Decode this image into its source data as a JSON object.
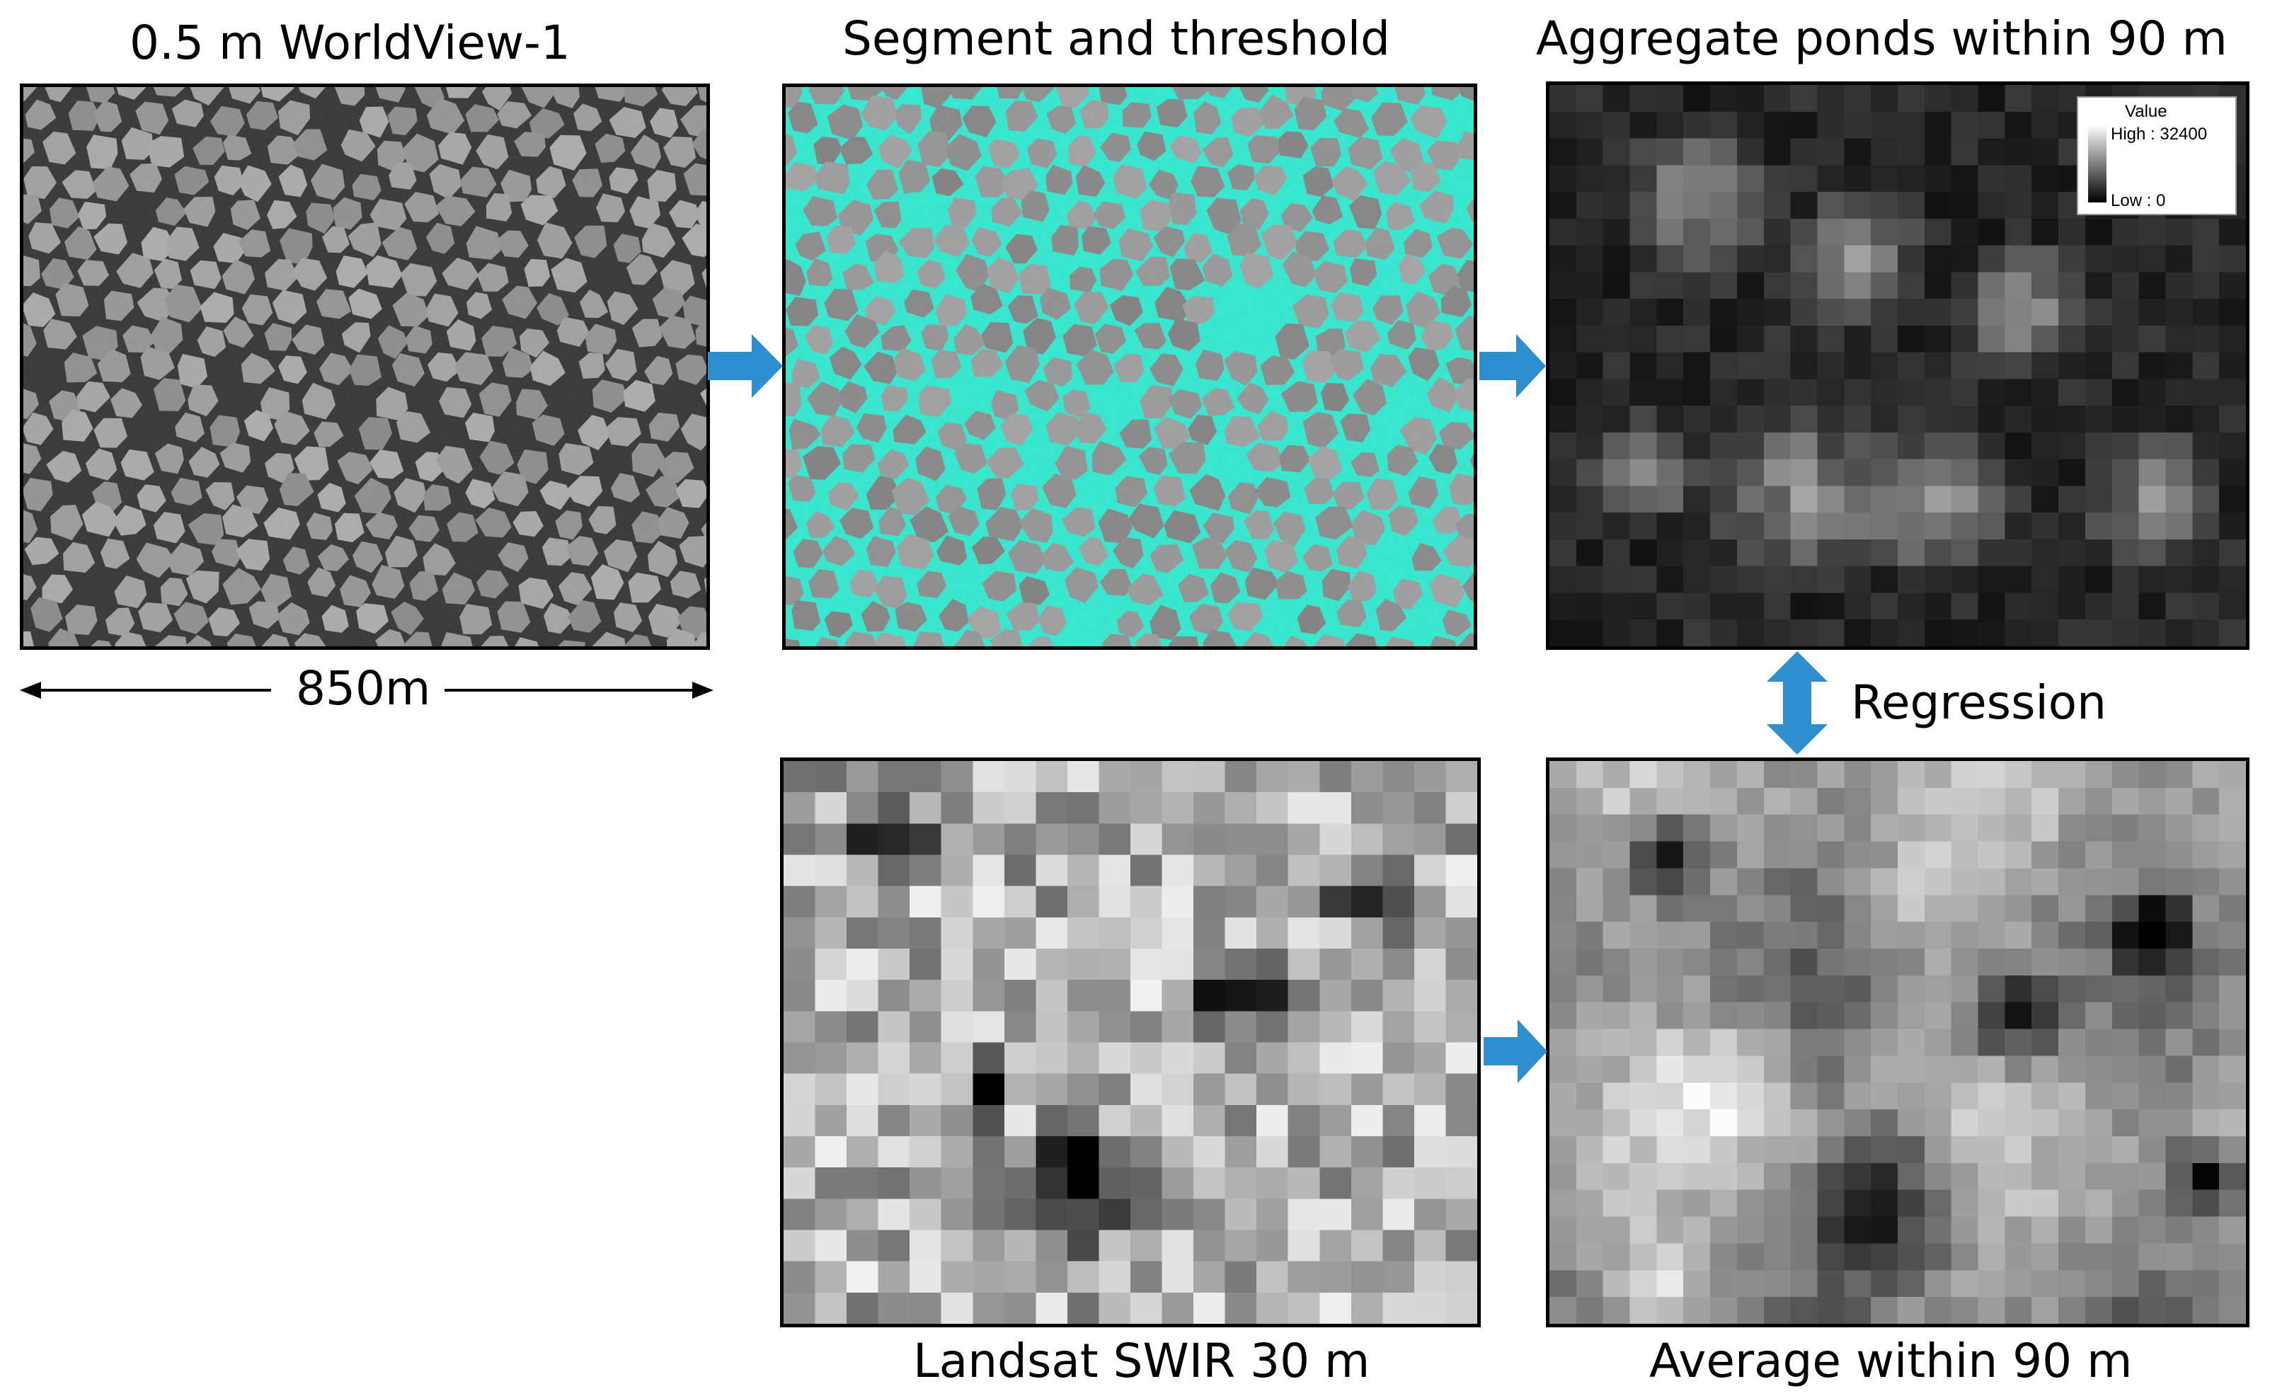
{
  "titles": {
    "worldview": "0.5 m WorldView-1",
    "segment": "Segment and threshold",
    "aggregate": "Aggregate ponds within 90 m",
    "landsat": "Landsat SWIR 30 m",
    "average": "Average within 90 m"
  },
  "scale_label": "850m",
  "regression_label": "Regression",
  "legend": {
    "title": "Value",
    "high": "High : 32400",
    "low": "Low : 0"
  },
  "colors": {
    "arrow": "#2E8FD0",
    "pond_highlight": "#1EEFD2",
    "border": "#000000"
  }
}
